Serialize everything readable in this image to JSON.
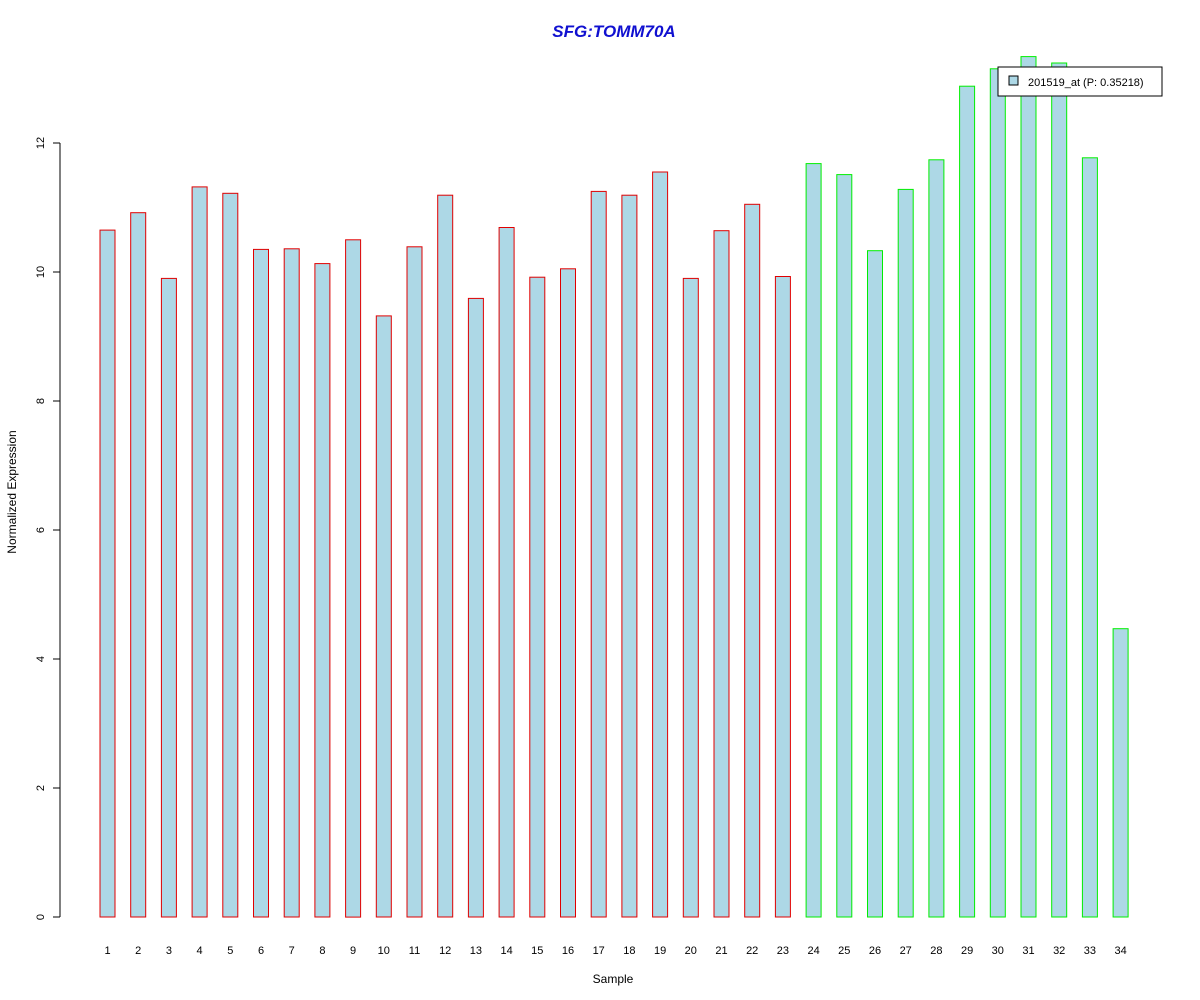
{
  "chart_data": {
    "type": "bar",
    "title": "SFG:TOMM70A",
    "xlabel": "Sample",
    "ylabel": "Normalized Expression",
    "ylim": [
      0,
      13.2
    ],
    "yticks": [
      0,
      2,
      4,
      6,
      8,
      10,
      12
    ],
    "grid": false,
    "legend_position": "top-right",
    "categories": [
      "1",
      "2",
      "3",
      "4",
      "5",
      "6",
      "7",
      "8",
      "9",
      "10",
      "11",
      "12",
      "13",
      "14",
      "15",
      "16",
      "17",
      "18",
      "19",
      "20",
      "21",
      "22",
      "23",
      "24",
      "25",
      "26",
      "27",
      "28",
      "29",
      "30",
      "31",
      "32",
      "33",
      "34"
    ],
    "series": [
      {
        "name": "201519_at (P: 0.35218)",
        "fill_color": "#add8e6",
        "values": [
          10.65,
          10.92,
          9.9,
          11.32,
          11.22,
          10.35,
          10.36,
          10.13,
          10.5,
          9.32,
          10.39,
          11.19,
          9.59,
          10.69,
          9.92,
          10.05,
          11.25,
          11.19,
          11.55,
          9.9,
          10.64,
          11.05,
          9.93,
          11.68,
          11.51,
          10.33,
          11.28,
          11.74,
          12.88,
          13.15,
          13.34,
          13.24,
          11.77,
          4.47
        ]
      }
    ],
    "bar_border_colors": [
      "#e00000",
      "#e00000",
      "#e00000",
      "#e00000",
      "#e00000",
      "#e00000",
      "#e00000",
      "#e00000",
      "#e00000",
      "#e00000",
      "#e00000",
      "#e00000",
      "#e00000",
      "#e00000",
      "#e00000",
      "#e00000",
      "#e00000",
      "#e00000",
      "#e00000",
      "#e00000",
      "#e00000",
      "#e00000",
      "#e00000",
      "#00ee00",
      "#00ee00",
      "#00ee00",
      "#00ee00",
      "#00ee00",
      "#00ee00",
      "#00ee00",
      "#00ee00",
      "#00ee00",
      "#00ee00",
      "#00ee00"
    ]
  }
}
